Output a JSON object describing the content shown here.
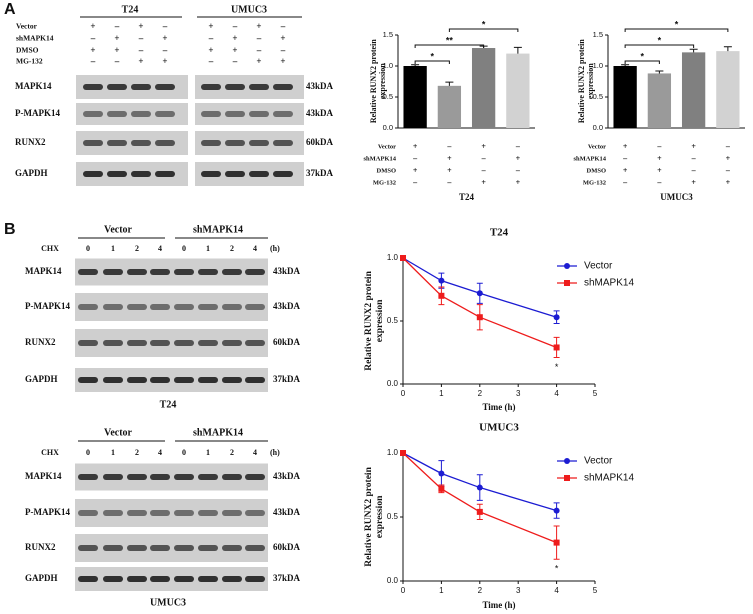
{
  "panel_labels": [
    "A",
    "B"
  ],
  "blots": [
    {
      "groups": [
        {
          "name": "T24"
        },
        {
          "name": "UMUC3"
        }
      ],
      "conditions": [
        {
          "name": "Vector",
          "signs": [
            "+",
            "–",
            "+",
            "–",
            "+",
            "–",
            "+",
            "–"
          ]
        },
        {
          "name": "shMAPK14",
          "signs": [
            "–",
            "+",
            "–",
            "+",
            "–",
            "+",
            "–",
            "+"
          ]
        },
        {
          "name": "DMSO",
          "signs": [
            "+",
            "+",
            "–",
            "–",
            "+",
            "+",
            "–",
            "–"
          ]
        },
        {
          "name": "MG-132",
          "signs": [
            "–",
            "–",
            "+",
            "+",
            "–",
            "–",
            "+",
            "+"
          ]
        }
      ],
      "proteins": [
        {
          "name": "MAPK14",
          "size": "43kDA"
        },
        {
          "name": "P-MAPK14",
          "size": "43kDA"
        },
        {
          "name": "RUNX2",
          "size": "60kDA"
        },
        {
          "name": "GAPDH",
          "size": "37kDA"
        }
      ]
    },
    {
      "groups": [
        {
          "name": "Vector"
        },
        {
          "name": "shMAPK14"
        }
      ],
      "treatment": "CHX",
      "lanes": [
        "0",
        "1",
        "2",
        "4",
        "0",
        "1",
        "2",
        "4"
      ],
      "unit": "(h)",
      "proteins": [
        {
          "name": "MAPK14",
          "size": "43kDA"
        },
        {
          "name": "P-MAPK14",
          "size": "43kDA"
        },
        {
          "name": "RUNX2",
          "size": "60kDA"
        },
        {
          "name": "GAPDH",
          "size": "37kDA"
        }
      ],
      "caption": "T24"
    },
    {
      "groups": [
        {
          "name": "Vector"
        },
        {
          "name": "shMAPK14"
        }
      ],
      "treatment": "CHX",
      "lanes": [
        "0",
        "1",
        "2",
        "4",
        "0",
        "1",
        "2",
        "4"
      ],
      "unit": "(h)",
      "proteins": [
        {
          "name": "MAPK14",
          "size": "43kDA"
        },
        {
          "name": "P-MAPK14",
          "size": "43kDA"
        },
        {
          "name": "RUNX2",
          "size": "60kDA"
        },
        {
          "name": "GAPDH",
          "size": "37kDA"
        }
      ],
      "caption": "UMUC3"
    }
  ],
  "chart_data": [
    {
      "type": "bar",
      "ylabel": "Relative RUNX2 protein expression",
      "xlabel": "T24",
      "values": [
        1.0,
        0.68,
        1.29,
        1.2
      ],
      "errors": [
        0.02,
        0.06,
        0.03,
        0.1
      ],
      "colors": [
        "#000000",
        "#9a9a9a",
        "#808080",
        "#d2d2d2"
      ],
      "ylim": [
        0,
        1.5
      ],
      "yticks": [
        {
          "value": 0,
          "label": "0.0"
        },
        0.5,
        {
          "value": 1,
          "label": "1.0"
        },
        1.5
      ],
      "conditions": [
        {
          "name": "Vector",
          "signs": [
            "+",
            "–",
            "+",
            "–"
          ]
        },
        {
          "name": "shMAPK14",
          "signs": [
            "–",
            "+",
            "–",
            "+"
          ]
        },
        {
          "name": "DMSO",
          "signs": [
            "+",
            "+",
            "–",
            "–"
          ]
        },
        {
          "name": "MG-132",
          "signs": [
            "–",
            "–",
            "+",
            "+"
          ]
        }
      ],
      "significance": [
        {
          "from": 0,
          "to": 1,
          "label": "*"
        },
        {
          "from": 0,
          "to": 2,
          "label": "**"
        },
        {
          "from": 1,
          "to": 3,
          "label": "*"
        }
      ]
    },
    {
      "type": "bar",
      "ylabel": "Relative RUNX2 protein expression",
      "xlabel": "UMUC3",
      "values": [
        1.0,
        0.88,
        1.22,
        1.24
      ],
      "errors": [
        0.02,
        0.04,
        0.05,
        0.07
      ],
      "colors": [
        "#000000",
        "#9a9a9a",
        "#808080",
        "#d2d2d2"
      ],
      "ylim": [
        0,
        1.5
      ],
      "yticks": [
        {
          "value": 0,
          "label": "0.0"
        },
        0.5,
        {
          "value": 1,
          "label": "1.0"
        },
        1.5
      ],
      "conditions": [
        {
          "name": "Vector",
          "signs": [
            "+",
            "–",
            "+",
            "–"
          ]
        },
        {
          "name": "shMAPK14",
          "signs": [
            "–",
            "+",
            "–",
            "+"
          ]
        },
        {
          "name": "DMSO",
          "signs": [
            "+",
            "+",
            "–",
            "–"
          ]
        },
        {
          "name": "MG-132",
          "signs": [
            "–",
            "–",
            "+",
            "+"
          ]
        }
      ],
      "significance": [
        {
          "from": 0,
          "to": 1,
          "label": "*"
        },
        {
          "from": 0,
          "to": 2,
          "label": "*"
        },
        {
          "from": 0,
          "to": 3,
          "label": "*"
        }
      ]
    },
    {
      "type": "line",
      "title": "T24",
      "xlabel": "Time (h)",
      "ylabel": "Relative RUNX2 protein expression",
      "x": [
        0,
        1,
        2,
        4
      ],
      "series": [
        {
          "name": "Vector",
          "color": "#1c1cd2",
          "marker": "circle",
          "values": [
            1.0,
            0.82,
            0.72,
            0.53
          ],
          "errors": [
            0,
            0.06,
            0.08,
            0.05
          ]
        },
        {
          "name": "shMAPK14",
          "color": "#ee1c1c",
          "marker": "square",
          "values": [
            1.0,
            0.7,
            0.53,
            0.29
          ],
          "errors": [
            0,
            0.07,
            0.1,
            0.08
          ]
        }
      ],
      "xlim": [
        0,
        5
      ],
      "xticks": [
        0,
        1,
        2,
        3,
        4,
        5
      ],
      "ylim": [
        0,
        1
      ],
      "yticks": [
        {
          "value": 0,
          "label": "0.0"
        },
        0.5,
        {
          "value": 1,
          "label": "1.0"
        }
      ],
      "legend": "upper right",
      "annotations": [
        {
          "text": "*",
          "x": 4
        }
      ]
    },
    {
      "type": "line",
      "title": "UMUC3",
      "xlabel": "Time (h)",
      "ylabel": "Relative RUNX2 protein expression",
      "x": [
        0,
        1,
        2,
        4
      ],
      "series": [
        {
          "name": "Vector",
          "color": "#1c1cd2",
          "marker": "circle",
          "values": [
            1.0,
            0.84,
            0.73,
            0.55
          ],
          "errors": [
            0,
            0.1,
            0.1,
            0.06
          ]
        },
        {
          "name": "shMAPK14",
          "color": "#ee1c1c",
          "marker": "square",
          "values": [
            1.0,
            0.72,
            0.54,
            0.3
          ],
          "errors": [
            0,
            0.03,
            0.06,
            0.13
          ]
        }
      ],
      "xlim": [
        0,
        5
      ],
      "xticks": [
        0,
        1,
        2,
        3,
        4,
        5
      ],
      "ylim": [
        0,
        1
      ],
      "yticks": [
        {
          "value": 0,
          "label": "0.0"
        },
        0.5,
        {
          "value": 1,
          "label": "1.0"
        }
      ],
      "legend": "upper right",
      "annotations": [
        {
          "text": "*",
          "x": 4
        }
      ]
    }
  ]
}
